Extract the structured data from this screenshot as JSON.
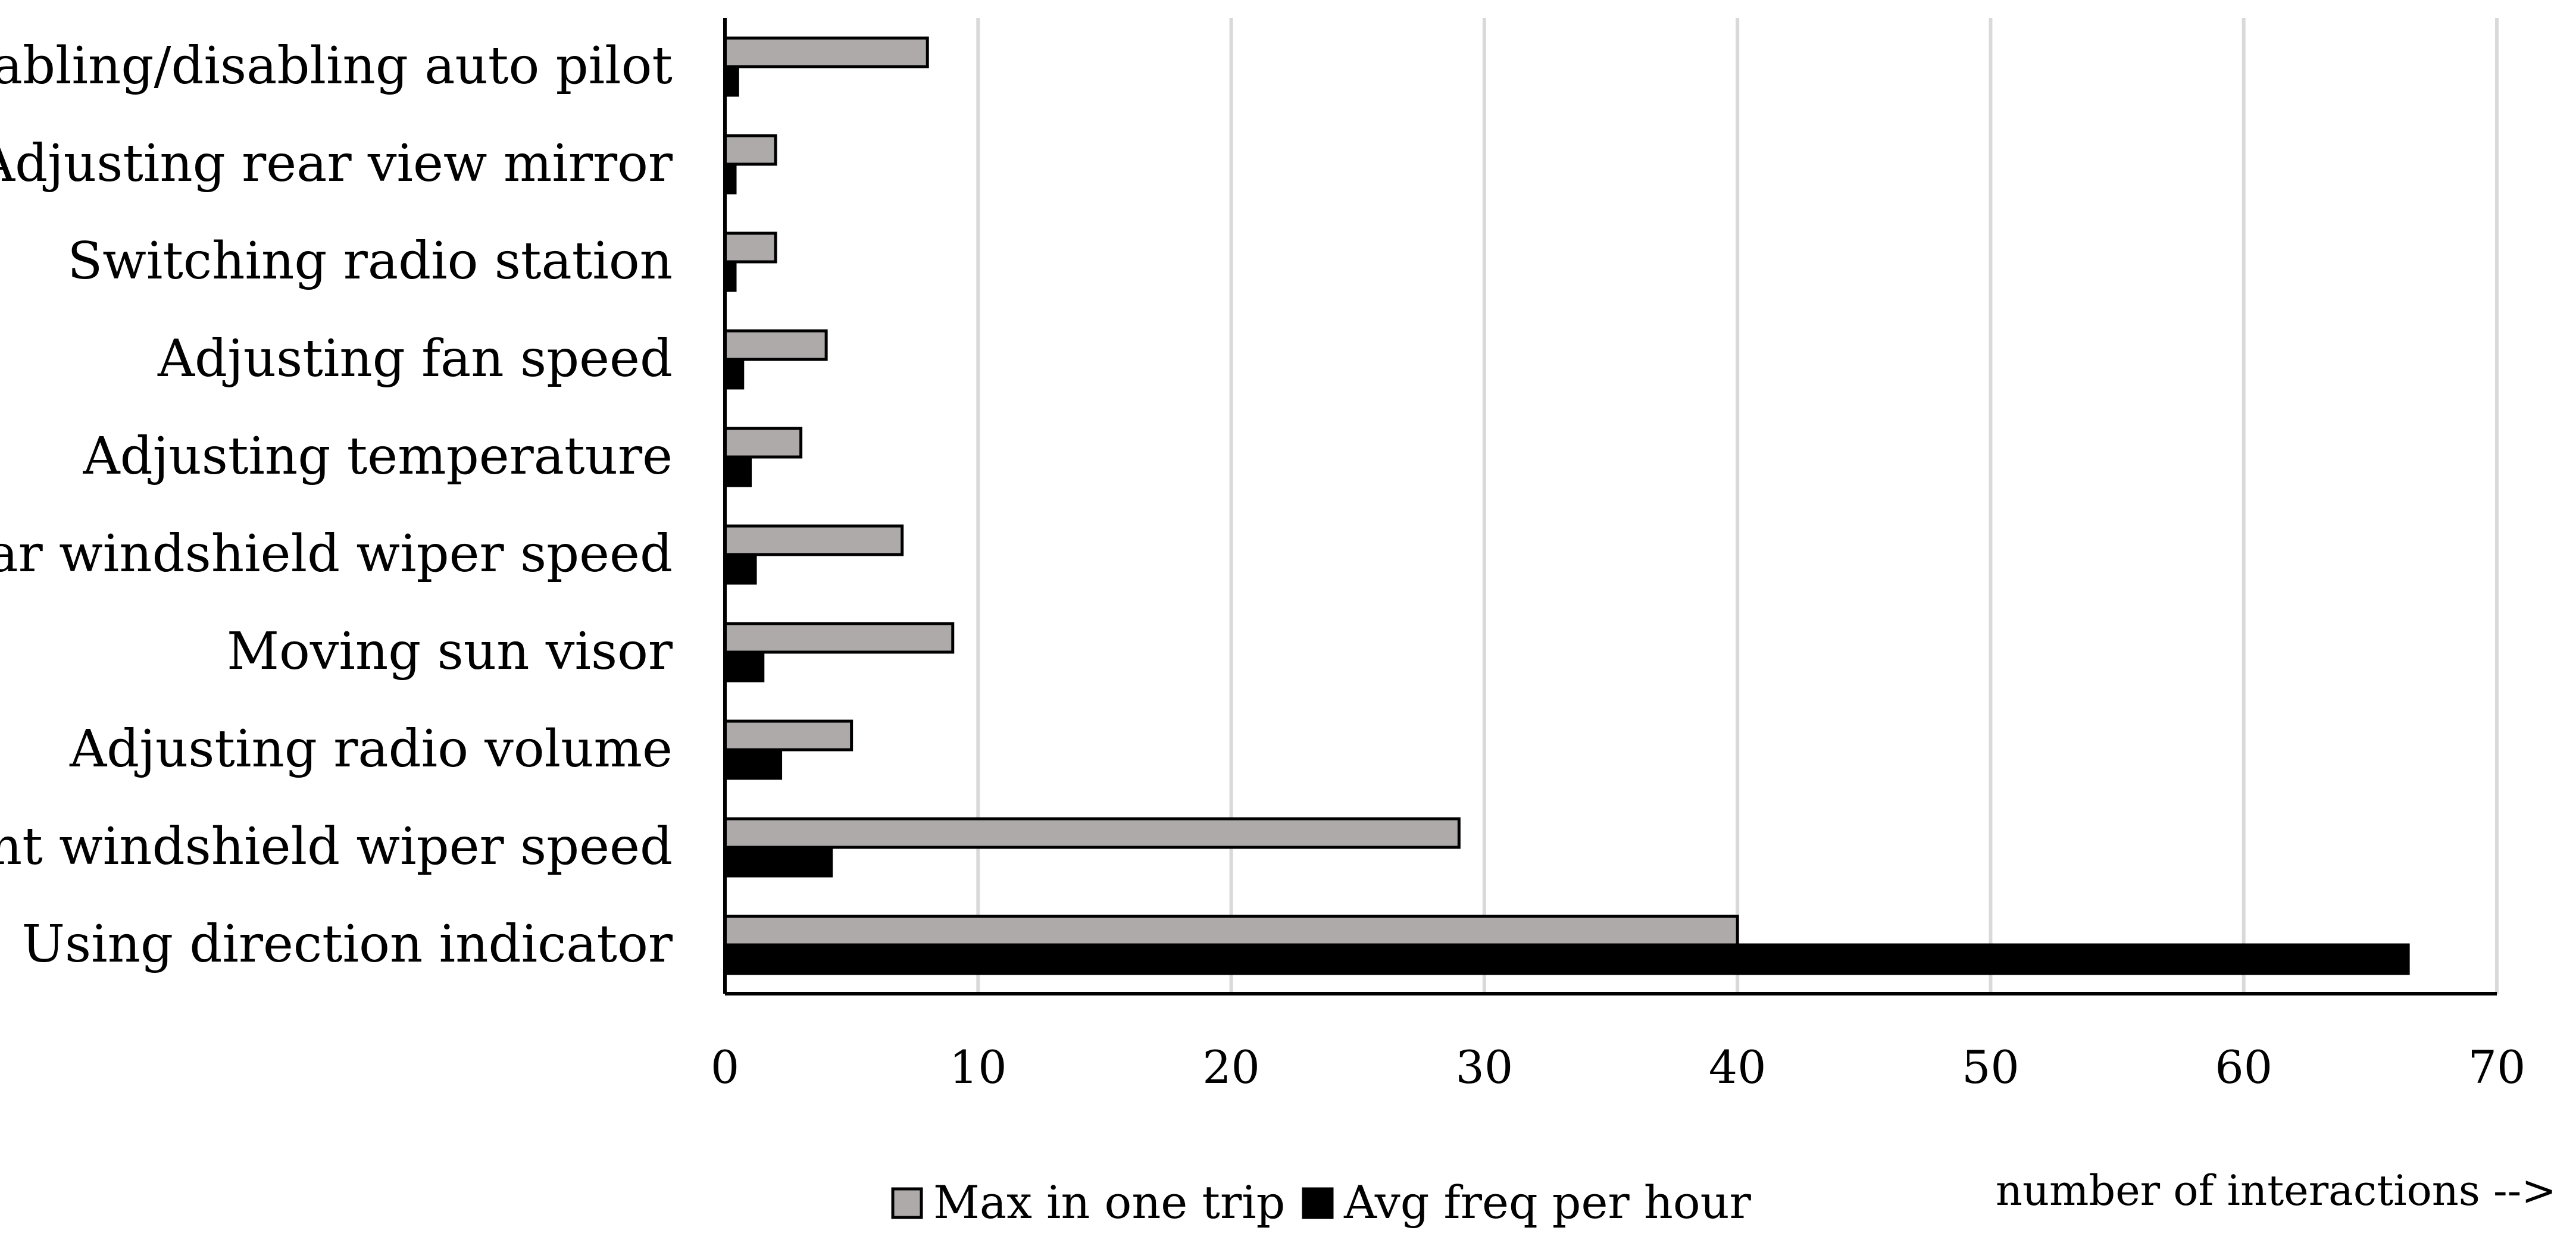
{
  "chart_data": {
    "type": "bar",
    "orientation": "horizontal",
    "categories": [
      "Enabling/disabling auto pilot",
      "Adjusting rear view mirror",
      "Switching radio station",
      "Adjusting fan speed",
      "Adjusting temperature",
      "Rear windshield wiper speed",
      "Moving sun visor",
      "Adjusting radio volume",
      "Front windshield wiper speed",
      "Using direction indicator"
    ],
    "series": [
      {
        "name": "Max in one trip",
        "color": "#aeaaaa",
        "values": [
          8,
          2,
          2,
          4,
          3,
          7,
          9,
          5,
          29,
          40
        ]
      },
      {
        "name": "Avg freq per hour",
        "color": "#000000",
        "values": [
          0.5,
          0.4,
          0.4,
          0.7,
          1.0,
          1.2,
          1.5,
          2.2,
          4.2,
          66.5
        ]
      }
    ],
    "xlabel": "number of interactions -->",
    "xlim": [
      0,
      70
    ],
    "xticks": [
      "0",
      "10",
      "20",
      "30",
      "40",
      "50",
      "60",
      "70"
    ],
    "grid": "vertical",
    "legend_position": "bottom"
  }
}
